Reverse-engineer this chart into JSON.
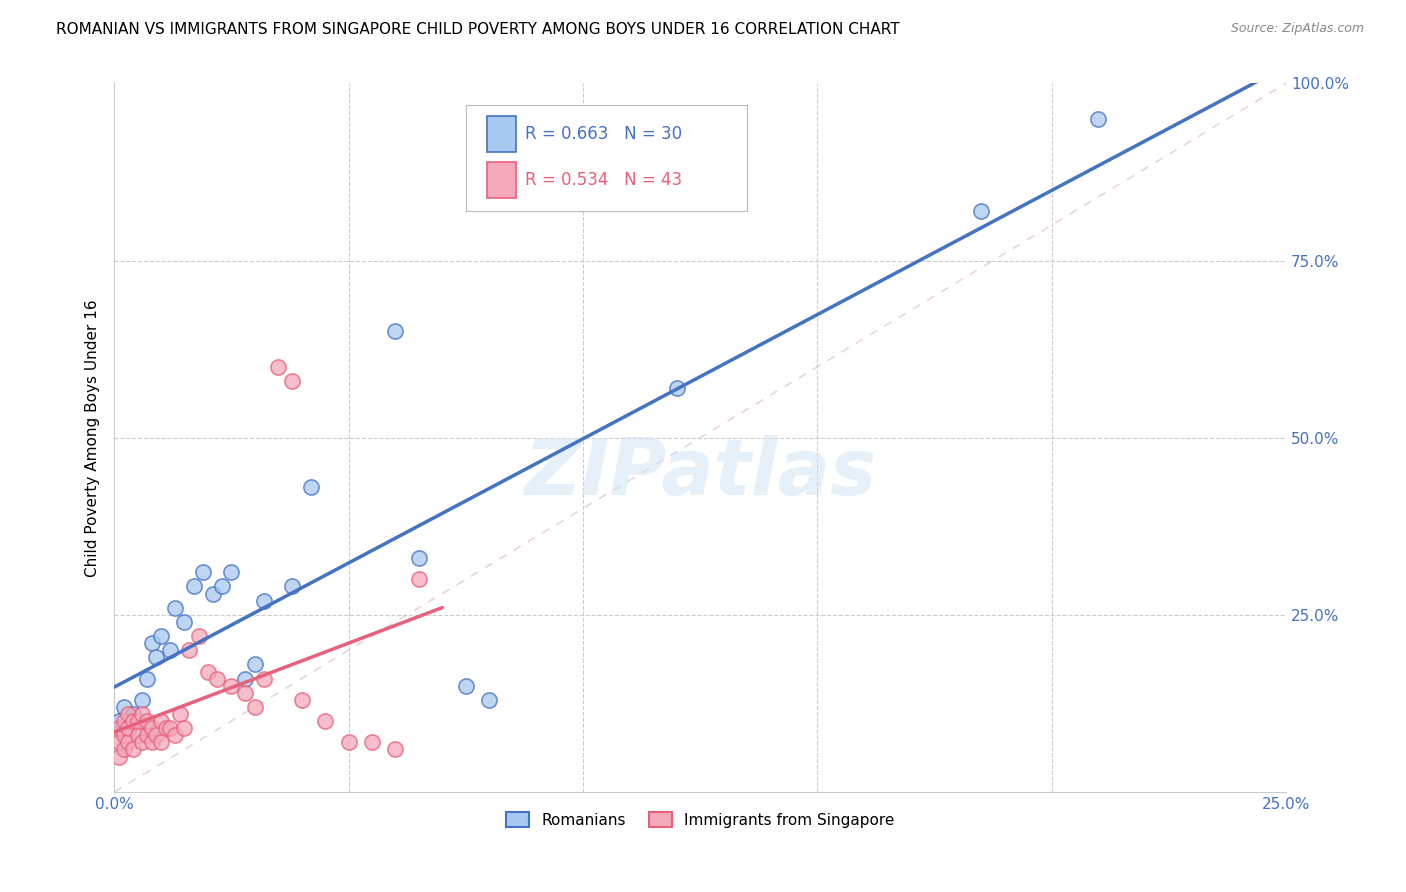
{
  "title": "ROMANIAN VS IMMIGRANTS FROM SINGAPORE CHILD POVERTY AMONG BOYS UNDER 16 CORRELATION CHART",
  "source": "Source: ZipAtlas.com",
  "ylabel": "Child Poverty Among Boys Under 16",
  "xlim": [
    0,
    0.25
  ],
  "ylim": [
    0,
    1.0
  ],
  "blue_R": 0.663,
  "blue_N": 30,
  "pink_R": 0.534,
  "pink_N": 43,
  "blue_label": "Romanians",
  "pink_label": "Immigrants from Singapore",
  "blue_color": "#A8C8F0",
  "blue_line_color": "#4472C4",
  "pink_color": "#F4A8BC",
  "pink_line_color": "#E8607A",
  "background_color": "#FFFFFF",
  "grid_color": "#CCCCCC",
  "watermark": "ZIPatlas",
  "blue_scatter_x": [
    0.001,
    0.002,
    0.003,
    0.004,
    0.005,
    0.006,
    0.007,
    0.008,
    0.009,
    0.01,
    0.012,
    0.013,
    0.015,
    0.017,
    0.019,
    0.021,
    0.023,
    0.025,
    0.028,
    0.03,
    0.032,
    0.038,
    0.042,
    0.06,
    0.065,
    0.075,
    0.08,
    0.12,
    0.185,
    0.21
  ],
  "blue_scatter_y": [
    0.1,
    0.12,
    0.09,
    0.11,
    0.08,
    0.13,
    0.16,
    0.21,
    0.19,
    0.22,
    0.2,
    0.26,
    0.24,
    0.29,
    0.31,
    0.28,
    0.29,
    0.31,
    0.16,
    0.18,
    0.27,
    0.29,
    0.43,
    0.65,
    0.33,
    0.15,
    0.13,
    0.57,
    0.82,
    0.95
  ],
  "pink_scatter_x": [
    0.001,
    0.001,
    0.001,
    0.002,
    0.002,
    0.002,
    0.003,
    0.003,
    0.003,
    0.004,
    0.004,
    0.005,
    0.005,
    0.006,
    0.006,
    0.007,
    0.007,
    0.008,
    0.008,
    0.009,
    0.01,
    0.01,
    0.011,
    0.012,
    0.013,
    0.014,
    0.015,
    0.016,
    0.018,
    0.02,
    0.022,
    0.025,
    0.028,
    0.03,
    0.032,
    0.035,
    0.038,
    0.04,
    0.045,
    0.05,
    0.055,
    0.06,
    0.065
  ],
  "pink_scatter_y": [
    0.05,
    0.07,
    0.09,
    0.06,
    0.08,
    0.1,
    0.07,
    0.09,
    0.11,
    0.06,
    0.1,
    0.08,
    0.1,
    0.07,
    0.11,
    0.08,
    0.1,
    0.07,
    0.09,
    0.08,
    0.07,
    0.1,
    0.09,
    0.09,
    0.08,
    0.11,
    0.09,
    0.2,
    0.22,
    0.17,
    0.16,
    0.15,
    0.14,
    0.12,
    0.16,
    0.6,
    0.58,
    0.13,
    0.1,
    0.07,
    0.07,
    0.06,
    0.3
  ]
}
